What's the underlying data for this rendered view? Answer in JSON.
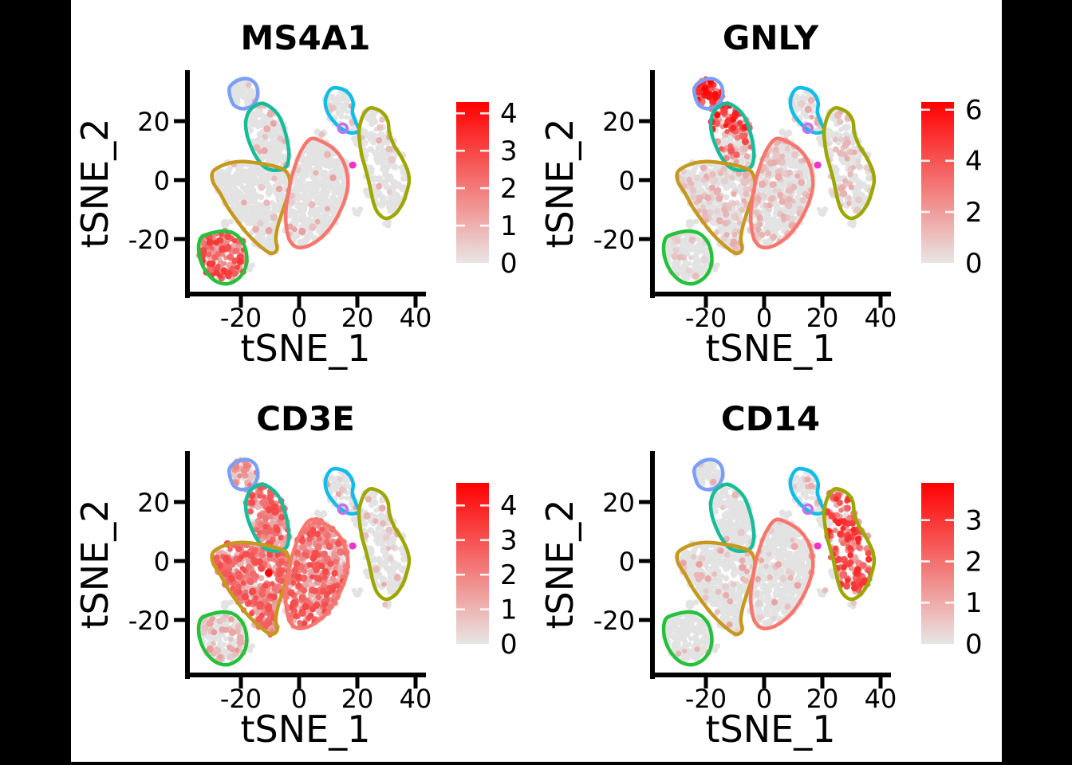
{
  "figure": {
    "background": "#000000",
    "panel_background": "#FFFFFF"
  },
  "chart_data": {
    "type": "scatter",
    "subtype": "tsne-feature-plot-grid",
    "grid": [
      2,
      2
    ],
    "xlabel": "tSNE_1",
    "ylabel": "tSNE_2",
    "x_ticks": [
      -20,
      0,
      20,
      40
    ],
    "y_ticks": [
      -20,
      0,
      20
    ],
    "x_range": [
      -38,
      43
    ],
    "y_range": [
      -38,
      37
    ],
    "colormap": {
      "low": "#E3E3E3",
      "high": "#FF0000"
    },
    "panels": [
      {
        "gene": "MS4A1",
        "colorbar_max": 4.3,
        "colorbar_ticks": [
          0,
          1,
          2,
          3,
          4
        ],
        "high_clusters": [
          "green"
        ]
      },
      {
        "gene": "GNLY",
        "colorbar_max": 6.3,
        "colorbar_ticks": [
          0,
          2,
          4,
          6
        ],
        "high_clusters": [
          "blue",
          "teal"
        ]
      },
      {
        "gene": "CD3E",
        "colorbar_max": 4.65,
        "colorbar_ticks": [
          0,
          1,
          2,
          3,
          4
        ],
        "high_clusters": [
          "teal",
          "gold",
          "salmon"
        ]
      },
      {
        "gene": "CD14",
        "colorbar_max": 3.9,
        "colorbar_ticks": [
          0,
          1,
          2,
          3
        ],
        "high_clusters": [
          "olive"
        ]
      }
    ],
    "special_points": {
      "CD3E": [
        [
          -10.5,
          -4,
          4.6
        ]
      ]
    },
    "markers": {
      "magenta_dot": {
        "x": 18.4,
        "y": 5.1,
        "r": 4.5,
        "color": "#EE35C9"
      },
      "orchid_ring": {
        "x": 15.0,
        "y": 17.6,
        "r": 5.5,
        "color": "#C172F2"
      }
    },
    "clusters": [
      {
        "id": "blue",
        "color": "#7B9FF7",
        "n": 50,
        "outline": [
          [
            -24,
            31
          ],
          [
            -21.5,
            33.6
          ],
          [
            -18,
            34.4
          ],
          [
            -15.3,
            33
          ],
          [
            -14.2,
            30.2
          ],
          [
            -14.8,
            27
          ],
          [
            -16.8,
            24.8
          ],
          [
            -20.2,
            24.3
          ],
          [
            -22.8,
            26
          ]
        ],
        "expression": {
          "MS4A1": [
            0.05,
            0.4,
            1.2
          ],
          "GNLY": [
            0.97,
            2.2,
            6.2
          ],
          "CD3E": [
            0.5,
            0.4,
            2.2
          ],
          "CD14": [
            0.04,
            0.3,
            0.9
          ]
        }
      },
      {
        "id": "teal",
        "color": "#16BD98",
        "n": 170,
        "outline": [
          [
            -13,
            26
          ],
          [
            -9.5,
            24.5
          ],
          [
            -6.8,
            21.5
          ],
          [
            -5,
            17
          ],
          [
            -3.9,
            12.5
          ],
          [
            -3.5,
            8
          ],
          [
            -4.6,
            4.4
          ],
          [
            -8,
            3.3
          ],
          [
            -11.8,
            4.4
          ],
          [
            -14.6,
            7.6
          ],
          [
            -16.6,
            11.6
          ],
          [
            -18,
            15.8
          ],
          [
            -18.3,
            20
          ],
          [
            -16.8,
            23.8
          ]
        ],
        "bias_top": [
          "GNLY"
        ],
        "expression": {
          "MS4A1": [
            0.06,
            0.4,
            1.2
          ],
          "GNLY": [
            0.55,
            0.8,
            5.5
          ],
          "CD3E": [
            0.88,
            0.8,
            3.2
          ],
          "CD14": [
            0.04,
            0.3,
            0.9
          ]
        }
      },
      {
        "id": "cyan",
        "color": "#10BCE8",
        "n": 65,
        "outline": [
          [
            11.5,
            31.2
          ],
          [
            15,
            30.8
          ],
          [
            17.5,
            28.8
          ],
          [
            18.6,
            26
          ],
          [
            18.3,
            23
          ],
          [
            19.6,
            19.4
          ],
          [
            20.6,
            16.8
          ],
          [
            17.8,
            16
          ],
          [
            14.6,
            17.4
          ],
          [
            12,
            19.8
          ],
          [
            10,
            22.6
          ],
          [
            9,
            25.8
          ],
          [
            9.6,
            29
          ]
        ],
        "expression": {
          "MS4A1": [
            0.08,
            0.4,
            1.2
          ],
          "GNLY": [
            0.2,
            0.4,
            1.8
          ],
          "CD3E": [
            0.18,
            0.3,
            1.4
          ],
          "CD14": [
            0.1,
            0.3,
            1.2
          ]
        }
      },
      {
        "id": "olive",
        "color": "#9DA702",
        "n": 190,
        "outline": [
          [
            25,
            24.5
          ],
          [
            28.5,
            23
          ],
          [
            30.5,
            20
          ],
          [
            31,
            16
          ],
          [
            32.5,
            12
          ],
          [
            35,
            8
          ],
          [
            37,
            4
          ],
          [
            37.8,
            0
          ],
          [
            37,
            -4
          ],
          [
            35.5,
            -8
          ],
          [
            33,
            -11.5
          ],
          [
            29.8,
            -13
          ],
          [
            27,
            -11
          ],
          [
            25.5,
            -7.5
          ],
          [
            24.6,
            -3.5
          ],
          [
            23.7,
            0.5
          ],
          [
            22.6,
            4.5
          ],
          [
            21.5,
            8.5
          ],
          [
            20.8,
            13
          ],
          [
            20.6,
            17
          ],
          [
            21.6,
            21
          ],
          [
            23,
            23.5
          ]
        ],
        "expression": {
          "MS4A1": [
            0.07,
            0.4,
            1.2
          ],
          "GNLY": [
            0.18,
            0.4,
            1.5
          ],
          "CD3E": [
            0.12,
            0.3,
            1.2
          ],
          "CD14": [
            0.88,
            0.8,
            3.3
          ]
        }
      },
      {
        "id": "gold",
        "color": "#C6981E",
        "n": 400,
        "outline": [
          [
            -29.5,
            3
          ],
          [
            -25,
            5.5
          ],
          [
            -20,
            6.3
          ],
          [
            -14.5,
            5.8
          ],
          [
            -9,
            4.8
          ],
          [
            -4.8,
            3.2
          ],
          [
            -3.2,
            0
          ],
          [
            -3.6,
            -4
          ],
          [
            -4.8,
            -8
          ],
          [
            -6.2,
            -12
          ],
          [
            -7.4,
            -16
          ],
          [
            -8,
            -20
          ],
          [
            -7.6,
            -23.6
          ],
          [
            -9.8,
            -24.8
          ],
          [
            -13.4,
            -22.4
          ],
          [
            -17.4,
            -18.6
          ],
          [
            -21,
            -14.2
          ],
          [
            -24.4,
            -9.4
          ],
          [
            -27.2,
            -4.4
          ],
          [
            -29.6,
            -0.6
          ]
        ],
        "expression": {
          "MS4A1": [
            0.05,
            0.4,
            1.3
          ],
          "GNLY": [
            0.28,
            0.4,
            1.6
          ],
          "CD3E": [
            0.88,
            0.8,
            3.2
          ],
          "CD14": [
            0.08,
            0.3,
            1.2
          ]
        }
      },
      {
        "id": "salmon",
        "color": "#F8766D",
        "n": 430,
        "outline": [
          [
            4,
            14
          ],
          [
            8,
            13
          ],
          [
            12,
            10.5
          ],
          [
            14.8,
            7
          ],
          [
            16.3,
            3
          ],
          [
            16.8,
            -1
          ],
          [
            16.2,
            -5
          ],
          [
            14.8,
            -9
          ],
          [
            12.8,
            -13
          ],
          [
            10.2,
            -16.8
          ],
          [
            7,
            -20
          ],
          [
            3.2,
            -22.3
          ],
          [
            -0.5,
            -22.8
          ],
          [
            -3.2,
            -20.5
          ],
          [
            -4.3,
            -16.5
          ],
          [
            -4.6,
            -12
          ],
          [
            -4.2,
            -7.5
          ],
          [
            -3.4,
            -3
          ],
          [
            -2.4,
            1.5
          ],
          [
            -1,
            6
          ],
          [
            1,
            10.5
          ]
        ],
        "expression": {
          "MS4A1": [
            0.05,
            0.4,
            1.3
          ],
          "GNLY": [
            0.28,
            0.4,
            1.6
          ],
          "CD3E": [
            0.88,
            0.8,
            3.2
          ],
          "CD14": [
            0.08,
            0.3,
            1.3
          ]
        }
      },
      {
        "id": "green",
        "color": "#25C13C",
        "n": 150,
        "outline": [
          [
            -33,
            -19
          ],
          [
            -29.5,
            -17.8
          ],
          [
            -26,
            -17.3
          ],
          [
            -22.5,
            -18
          ],
          [
            -19.8,
            -20.4
          ],
          [
            -18.3,
            -23.8
          ],
          [
            -18,
            -27.6
          ],
          [
            -19,
            -31
          ],
          [
            -21.4,
            -33.8
          ],
          [
            -24.8,
            -35.2
          ],
          [
            -28.4,
            -34.4
          ],
          [
            -31.4,
            -31.8
          ],
          [
            -33.6,
            -28
          ],
          [
            -34.5,
            -23.8
          ],
          [
            -34.2,
            -20.6
          ]
        ],
        "expression": {
          "MS4A1": [
            0.96,
            0.9,
            3.3
          ],
          "GNLY": [
            0.1,
            0.3,
            1.2
          ],
          "CD3E": [
            0.35,
            0.4,
            1.6
          ],
          "CD14": [
            0.05,
            0.3,
            0.9
          ]
        }
      }
    ],
    "noise_blobs": [
      {
        "x": 20.5,
        "y": 13.5,
        "rx": 2.6,
        "ry": 2.2,
        "n": 14
      },
      {
        "x": 16.2,
        "y": 5.0,
        "rx": 1.6,
        "ry": 1.4,
        "n": 6
      },
      {
        "x": 24.2,
        "y": -3.0,
        "rx": 1.8,
        "ry": 2.6,
        "n": 9
      },
      {
        "x": -24.6,
        "y": -14.6,
        "rx": 2.0,
        "ry": 1.2,
        "n": 6
      },
      {
        "x": -16.8,
        "y": -29.0,
        "rx": 1.4,
        "ry": 1.8,
        "n": 5
      },
      {
        "x": -14.2,
        "y": -13.2,
        "rx": 1.2,
        "ry": 1.0,
        "n": 4
      },
      {
        "x": 7.6,
        "y": 15.6,
        "rx": 1.8,
        "ry": 1.1,
        "n": 5
      },
      {
        "x": 30.5,
        "y": -14.6,
        "rx": 1.4,
        "ry": 0.9,
        "n": 4
      },
      {
        "x": 20.0,
        "y": -10.0,
        "rx": 1.2,
        "ry": 1.5,
        "n": 4
      }
    ]
  }
}
